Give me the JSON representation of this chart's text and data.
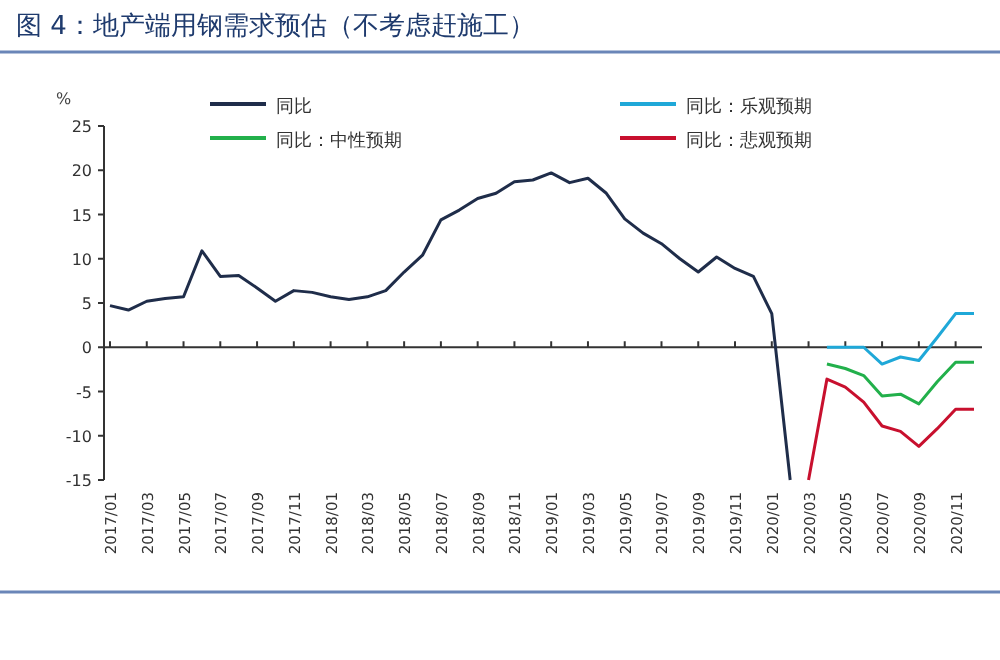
{
  "chart_data": {
    "type": "line",
    "title": "图 4：地产端用钢需求预估（不考虑赶施工）",
    "ylabel": "%",
    "categories": [
      "2017/01",
      null,
      "2017/03",
      null,
      "2017/05",
      null,
      "2017/07",
      null,
      "2017/09",
      null,
      "2017/11",
      null,
      "2018/01",
      null,
      "2018/03",
      null,
      "2018/05",
      null,
      "2018/07",
      null,
      "2018/09",
      null,
      "2018/11",
      null,
      "2019/01",
      null,
      "2019/03",
      null,
      "2019/05",
      null,
      "2019/07",
      null,
      "2019/09",
      null,
      "2019/11",
      null,
      "2020/01",
      null,
      "2020/03",
      null,
      "2020/05",
      null,
      "2020/07",
      null,
      "2020/09",
      null,
      "2020/11",
      null
    ],
    "series": [
      {
        "name": "同比",
        "color": "#1f2d4a",
        "values": [
          4.7,
          4.2,
          5.2,
          5.5,
          5.7,
          10.9,
          8.0,
          8.1,
          6.7,
          5.2,
          6.4,
          6.2,
          5.7,
          5.4,
          5.7,
          6.4,
          8.5,
          10.4,
          14.4,
          15.5,
          16.8,
          17.4,
          18.7,
          18.9,
          19.7,
          18.6,
          19.1,
          17.4,
          14.5,
          12.9,
          11.7,
          10.0,
          8.5,
          10.2,
          8.9,
          8.0,
          3.8,
          -15,
          null,
          null,
          null,
          null,
          null,
          null,
          null,
          null,
          null,
          null
        ]
      },
      {
        "name": "同比：乐观预期",
        "color": "#1fa8d8",
        "values": [
          null,
          null,
          null,
          null,
          null,
          null,
          null,
          null,
          null,
          null,
          null,
          null,
          null,
          null,
          null,
          null,
          null,
          null,
          null,
          null,
          null,
          null,
          null,
          null,
          null,
          null,
          null,
          null,
          null,
          null,
          null,
          null,
          null,
          null,
          null,
          null,
          null,
          null,
          null,
          0,
          0,
          0,
          -1.9,
          -1.1,
          -1.5,
          1.1,
          3.8,
          3.8
        ]
      },
      {
        "name": "同比：中性预期",
        "color": "#22b04b",
        "values": [
          null,
          null,
          null,
          null,
          null,
          null,
          null,
          null,
          null,
          null,
          null,
          null,
          null,
          null,
          null,
          null,
          null,
          null,
          null,
          null,
          null,
          null,
          null,
          null,
          null,
          null,
          null,
          null,
          null,
          null,
          null,
          null,
          null,
          null,
          null,
          null,
          null,
          null,
          null,
          -1.9,
          -2.4,
          -3.2,
          -5.5,
          -5.3,
          -6.4,
          -3.9,
          -1.7,
          -1.7
        ]
      },
      {
        "name": "同比：悲观预期",
        "color": "#c8102e",
        "values": [
          null,
          null,
          null,
          null,
          null,
          null,
          null,
          null,
          null,
          null,
          null,
          null,
          null,
          null,
          null,
          null,
          null,
          null,
          null,
          null,
          null,
          null,
          null,
          null,
          null,
          null,
          null,
          null,
          null,
          null,
          null,
          null,
          null,
          null,
          null,
          null,
          null,
          null,
          -15,
          -3.6,
          -4.5,
          -6.2,
          -8.9,
          -9.5,
          -11.2,
          -9.2,
          -7.0,
          -7.0
        ]
      }
    ],
    "ylim": [
      -15,
      25
    ],
    "yticks": [
      -15,
      -10,
      -5,
      0,
      5,
      10,
      15,
      20,
      25
    ],
    "legend": "top",
    "marker": "none",
    "line_style": "solid"
  }
}
